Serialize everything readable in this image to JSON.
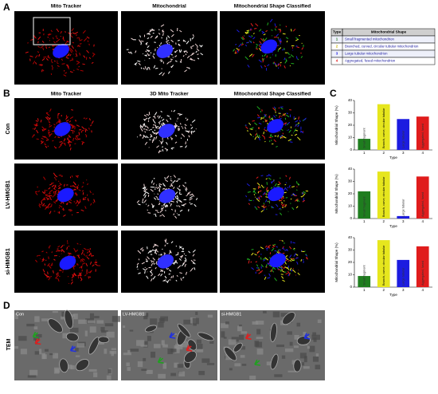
{
  "panel_labels": [
    "A",
    "B",
    "C",
    "D"
  ],
  "panel_a": {
    "titles": [
      "Mito Tracker",
      "Mitochondrial",
      "Mitochondrial Shape Classified"
    ],
    "table": {
      "header": [
        "Type",
        "Mitochondrial Shape"
      ],
      "rows": [
        [
          "1",
          "Small fragmented mitochondrion"
        ],
        [
          "2",
          "Branched, curved, circular tubular mitochondrion"
        ],
        [
          "3",
          "Large tubular mitochondrion"
        ],
        [
          "4",
          "Aggregated, fused mitochondrion"
        ]
      ]
    }
  },
  "panel_b": {
    "titles": [
      "Mito Tracker",
      "3D Mito Tracker",
      "Mitochondrial Shape Classified"
    ],
    "rows": [
      "Con",
      "LV-HMGB1",
      "si-HMGB1"
    ]
  },
  "chart_data": [
    {
      "type": "bar",
      "y_label": "Mitochondrial Shape (%)",
      "x_label": "Type",
      "categories": [
        "1",
        "2",
        "3",
        "4"
      ],
      "values": [
        9,
        37,
        25,
        27
      ],
      "bar_labels": [
        "Small fragment",
        "Branch, curve, circular tubular",
        "Large tubular",
        "Aggregated, fused"
      ],
      "colors": [
        "#1f7d1f",
        "#e6e61e",
        "#1c1ce0",
        "#e01c1c"
      ],
      "ylim": [
        0,
        40
      ],
      "yticks": [
        0,
        10,
        20,
        30,
        40
      ]
    },
    {
      "type": "bar",
      "y_label": "Mitochondrial Shape (%)",
      "x_label": "Type",
      "categories": [
        "1",
        "2",
        "3",
        "4"
      ],
      "values": [
        22,
        38,
        2,
        34
      ],
      "bar_labels": [
        "Small fragment",
        "Branch, curve, circular tubular",
        "Large tubular",
        "Aggregated, fused"
      ],
      "colors": [
        "#1f7d1f",
        "#e6e61e",
        "#1c1ce0",
        "#e01c1c"
      ],
      "ylim": [
        0,
        40
      ],
      "yticks": [
        0,
        10,
        20,
        30,
        40
      ]
    },
    {
      "type": "bar",
      "y_label": "Mitochondrial Shape (%)",
      "x_label": "Type",
      "categories": [
        "1",
        "2",
        "3",
        "4"
      ],
      "values": [
        9,
        38,
        22,
        33
      ],
      "bar_labels": [
        "Small fragment",
        "Branch, curve, circular tubular",
        "Large tubular",
        "Aggregated, fused"
      ],
      "colors": [
        "#1f7d1f",
        "#e6e61e",
        "#1c1ce0",
        "#e01c1c"
      ],
      "ylim": [
        0,
        40
      ],
      "yticks": [
        0,
        10,
        20,
        30,
        40
      ]
    }
  ],
  "panel_d": {
    "side_label": "TEM",
    "image_labels": [
      "Con",
      "LV-HMGB1",
      "si-HMGB1"
    ]
  }
}
